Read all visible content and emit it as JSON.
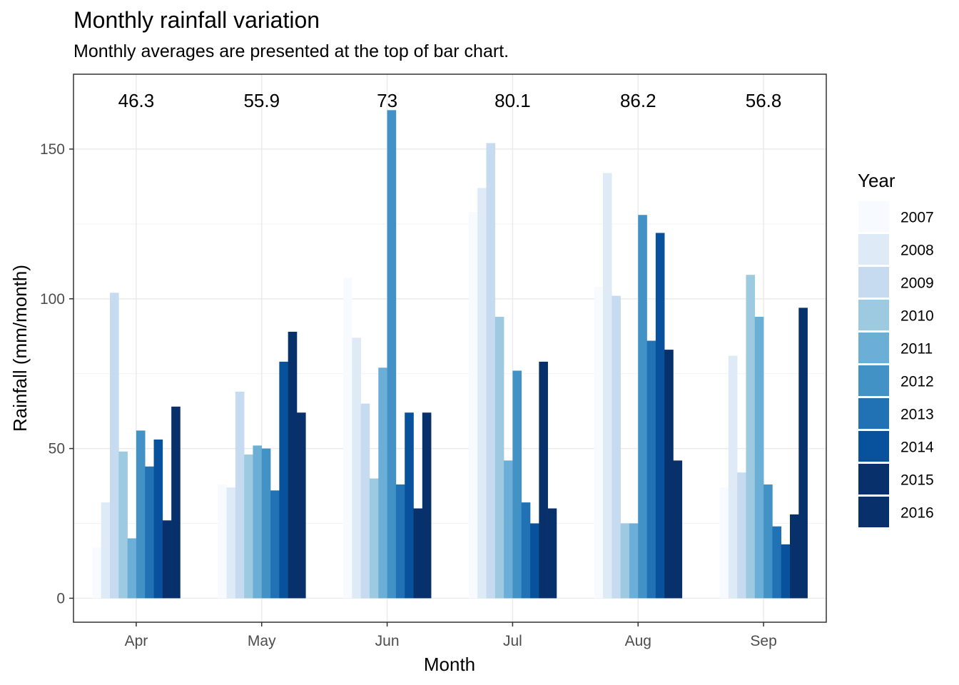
{
  "chart_data": {
    "type": "bar",
    "title": "Monthly rainfall variation",
    "subtitle": "Monthly averages are presented at the top of bar chart.",
    "xlabel": "Month",
    "ylabel": "Rainfall (mm/month)",
    "ylim": [
      -8,
      175
    ],
    "yticks": [
      0,
      50,
      100,
      150
    ],
    "grid": true,
    "legend_title": "Year",
    "legend_position": "right",
    "categories": [
      "Apr",
      "May",
      "Jun",
      "Jul",
      "Aug",
      "Sep"
    ],
    "averages": [
      "46.3",
      "55.9",
      "73",
      "80.1",
      "86.2",
      "56.8"
    ],
    "colors": [
      "#F7FBFF",
      "#DEEBF7",
      "#C6DBEF",
      "#9ECAE1",
      "#6BAED6",
      "#4292C6",
      "#2171B5",
      "#08519C",
      "#08306B",
      "#08306B"
    ],
    "series": [
      {
        "name": "2007",
        "color": "#F7FBFF",
        "values": [
          17,
          38,
          107,
          129,
          104,
          37
        ]
      },
      {
        "name": "2008",
        "color": "#DEEBF7",
        "values": [
          32,
          37,
          87,
          137,
          142,
          81
        ]
      },
      {
        "name": "2009",
        "color": "#C6DBEF",
        "values": [
          102,
          69,
          65,
          152,
          101,
          42
        ]
      },
      {
        "name": "2010",
        "color": "#9ECAE1",
        "values": [
          49,
          48,
          40,
          94,
          25,
          108
        ]
      },
      {
        "name": "2011",
        "color": "#6BAED6",
        "values": [
          20,
          51,
          77,
          46,
          25,
          94
        ]
      },
      {
        "name": "2012",
        "color": "#4292C6",
        "values": [
          56,
          50,
          163,
          76,
          128,
          38
        ]
      },
      {
        "name": "2013",
        "color": "#2171B5",
        "values": [
          44,
          36,
          38,
          32,
          86,
          24
        ]
      },
      {
        "name": "2014",
        "color": "#08519C",
        "values": [
          53,
          79,
          62,
          25,
          122,
          18
        ]
      },
      {
        "name": "2015",
        "color": "#08306B",
        "values": [
          26,
          89,
          30,
          79,
          83,
          28
        ]
      },
      {
        "name": "2016",
        "color": "#08306B",
        "values": [
          64,
          62,
          62,
          30,
          46,
          97
        ]
      }
    ]
  }
}
